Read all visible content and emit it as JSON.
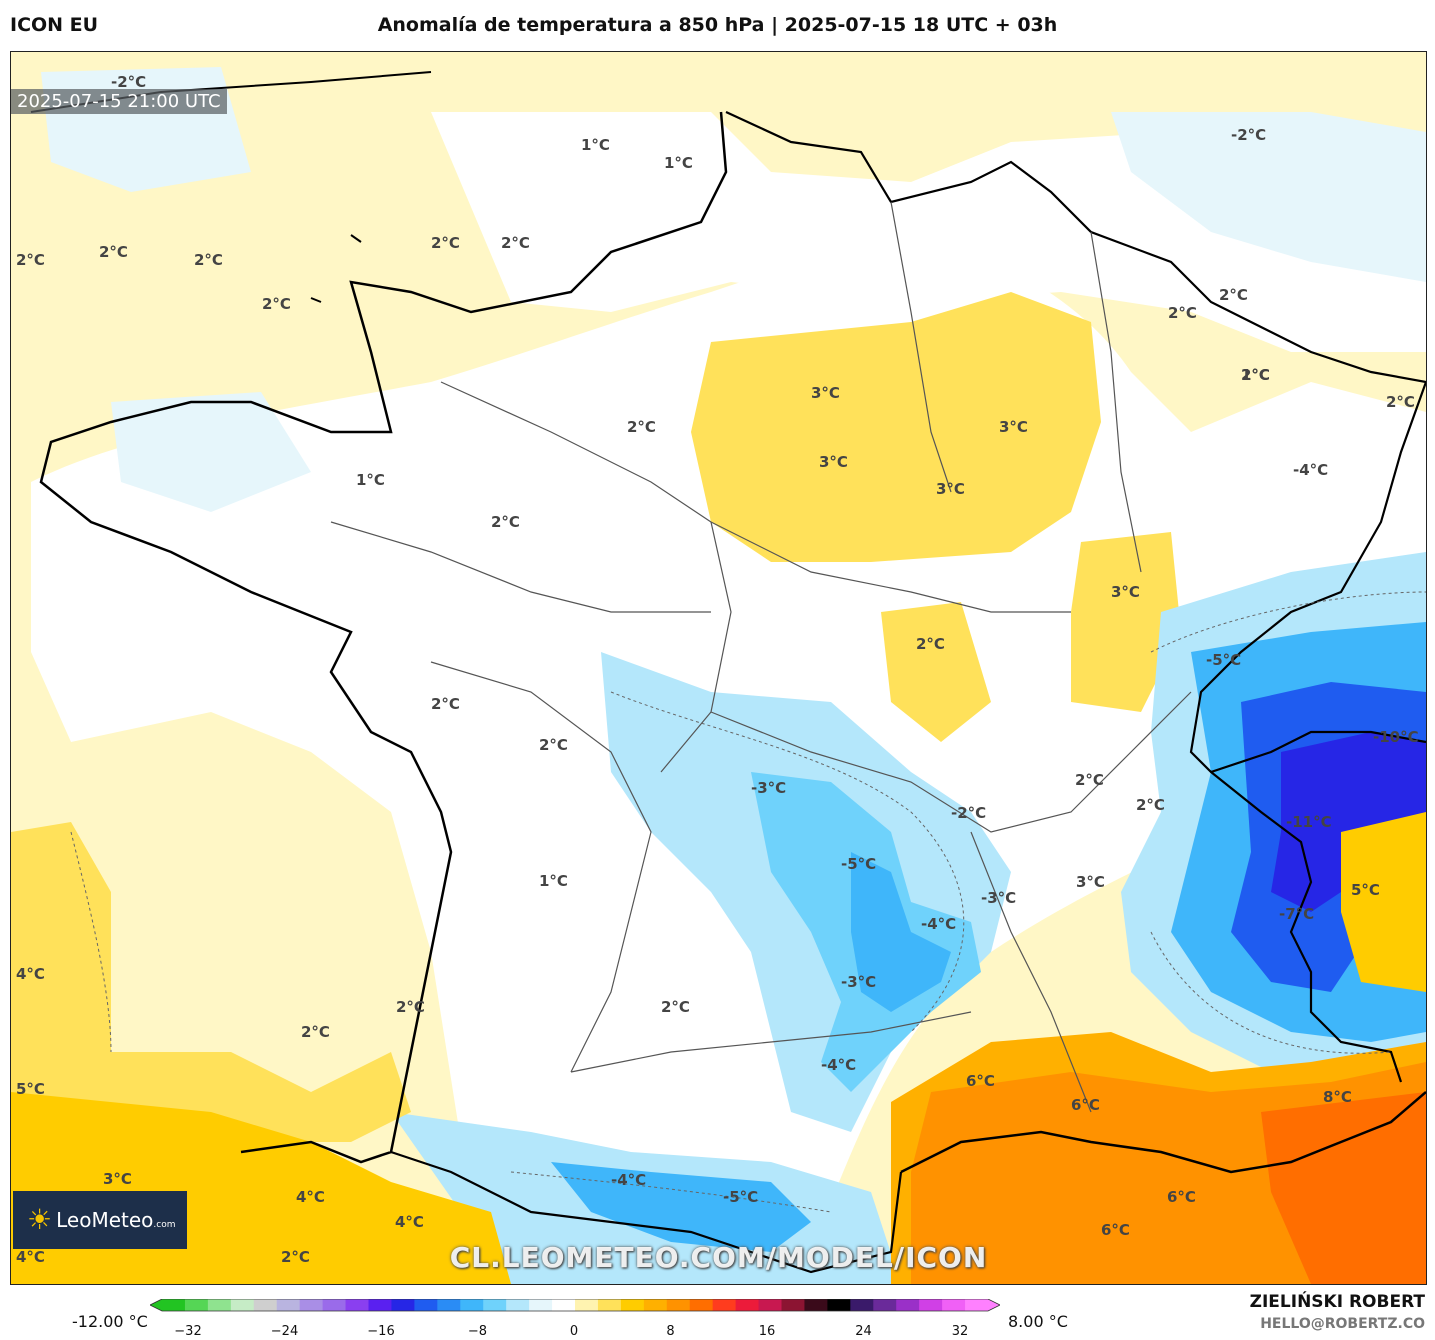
{
  "header": {
    "model": "ICON EU",
    "title": "Anomalía de temperatura a 850 hPa | 2025-07-15 18 UTC + 03h"
  },
  "map": {
    "valid_time": "2025-07-15 21:00 UTC",
    "watermark": "CL.LEOMETEO.COM/MODEL/ICON",
    "logo": {
      "name": "LeoMeteo",
      "suffix": ".com",
      "icon": "sun-icon"
    },
    "labels": [
      {
        "text": "-2°C"
      },
      {
        "text": "-2°C"
      },
      {
        "text": "1°C"
      },
      {
        "text": "1°C"
      },
      {
        "text": "2°C"
      },
      {
        "text": "2°C"
      },
      {
        "text": "2°C"
      },
      {
        "text": "2°C"
      },
      {
        "text": "2°C"
      },
      {
        "text": "2°C"
      },
      {
        "text": "2°C"
      },
      {
        "text": "2°C"
      },
      {
        "text": "1°C"
      },
      {
        "text": "3°C"
      },
      {
        "text": "3°C"
      },
      {
        "text": "3°C"
      },
      {
        "text": "3°C"
      },
      {
        "text": "2°C"
      },
      {
        "text": "2°C"
      },
      {
        "text": "2°C"
      },
      {
        "text": "1°C"
      },
      {
        "text": "2°C"
      },
      {
        "text": "-4°C"
      },
      {
        "text": "3°C"
      },
      {
        "text": "2°C"
      },
      {
        "text": "-5°C"
      },
      {
        "text": "2°C"
      },
      {
        "text": "2°C"
      },
      {
        "text": "-10°C"
      },
      {
        "text": "-3°C"
      },
      {
        "text": "-2°C"
      },
      {
        "text": "2°C"
      },
      {
        "text": "2°C"
      },
      {
        "text": "-11°C"
      },
      {
        "text": "-5°C"
      },
      {
        "text": "1°C"
      },
      {
        "text": "3°C"
      },
      {
        "text": "5°C"
      },
      {
        "text": "-3°C"
      },
      {
        "text": "-4°C"
      },
      {
        "text": "-7°C"
      },
      {
        "text": "4°C"
      },
      {
        "text": "-3°C"
      },
      {
        "text": "2°C"
      },
      {
        "text": "2°C"
      },
      {
        "text": "2°C"
      },
      {
        "text": "-4°C"
      },
      {
        "text": "5°C"
      },
      {
        "text": "6°C"
      },
      {
        "text": "6°C"
      },
      {
        "text": "8°C"
      },
      {
        "text": "3°C"
      },
      {
        "text": "4°C"
      },
      {
        "text": "-4°C"
      },
      {
        "text": "4°C"
      },
      {
        "text": "-5°C"
      },
      {
        "text": "6°C"
      },
      {
        "text": "6°C"
      },
      {
        "text": "4°C"
      },
      {
        "text": "2°C"
      }
    ]
  },
  "colorbar": {
    "min_label": "-12.00 °C",
    "max_label": "8.00 °C",
    "ticks": [
      "−32",
      "−24",
      "−16",
      "−8",
      "0",
      "8",
      "16",
      "24",
      "32"
    ],
    "colors": [
      "#22c422",
      "#55d655",
      "#8fe38f",
      "#c6ecc6",
      "#cfcfcf",
      "#b9b4e0",
      "#a98ee6",
      "#9a6bea",
      "#8a3ff0",
      "#5a20f0",
      "#2626e6",
      "#1f5cf0",
      "#2a8cf5",
      "#3fb6fa",
      "#6fd2fb",
      "#b4e7fb",
      "#e6f6fb",
      "#ffffff",
      "#fff3b0",
      "#ffe15a",
      "#ffcc00",
      "#ffb000",
      "#ff9200",
      "#ff6e00",
      "#ff3c1e",
      "#ec1b3a",
      "#c81850",
      "#8c1432",
      "#3a0a1a",
      "#000000",
      "#3a1a6a",
      "#6a2a9a",
      "#9a30c8",
      "#d040e6",
      "#f060f6",
      "#ff80ff"
    ]
  },
  "credits": {
    "author": "ZIELIŃSKI ROBERT",
    "email": "HELLO@ROBERTZ.CO"
  }
}
